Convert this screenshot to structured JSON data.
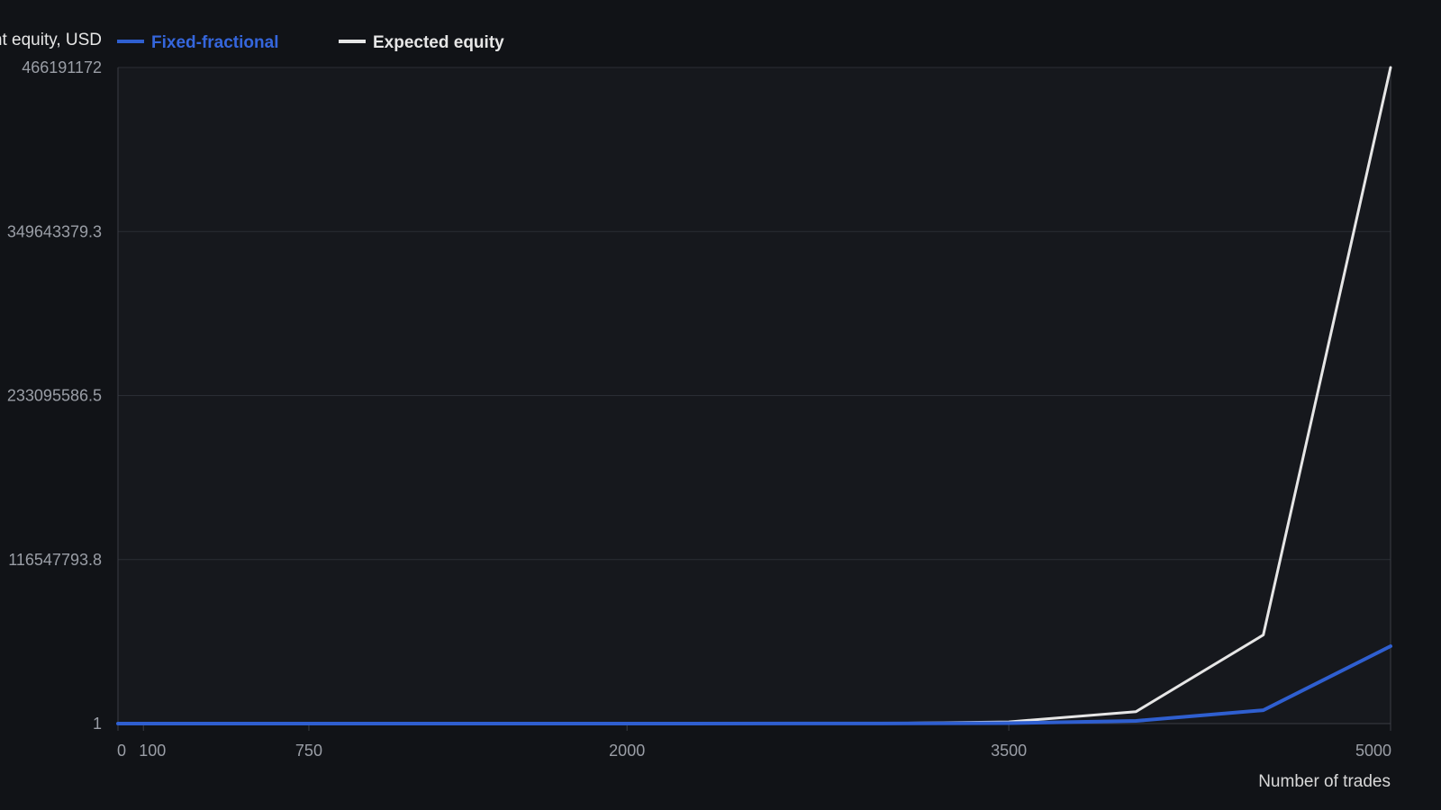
{
  "chart_data": {
    "type": "line",
    "ylabel": "nt equity, USD",
    "xlabel": "Number of trades",
    "x": [
      0,
      100,
      750,
      2000,
      3000,
      3500,
      4000,
      4500,
      5000
    ],
    "xticks": [
      0,
      100,
      750,
      2000,
      3500,
      5000
    ],
    "xtick_labels": [
      "0",
      "100",
      "750",
      "2000",
      "3500",
      "5000"
    ],
    "xlim": [
      0,
      5000
    ],
    "yticks": [
      1,
      116547793.8,
      233095586.5,
      349643379.3,
      466191172
    ],
    "ytick_labels": [
      "1",
      "116547793.8",
      "233095586.5",
      "349643379.3",
      "466191172"
    ],
    "ylim": [
      1,
      466191172
    ],
    "grid": true,
    "legend_position": "top-left",
    "series": [
      {
        "name": "Expected equity",
        "color": "#e6e6e6",
        "values": [
          1,
          1,
          1,
          1,
          80000,
          1200000,
          8500000,
          63000000,
          466191172
        ]
      },
      {
        "name": "Fixed-fractional",
        "color": "#2f5fd0",
        "values": [
          1,
          1,
          1,
          1,
          40000,
          350000,
          1900000,
          9500000,
          55000000
        ]
      }
    ],
    "legend": [
      {
        "name": "Fixed-fractional",
        "color": "#2f5fd0",
        "label_color": "#3566dc"
      },
      {
        "name": "Expected equity",
        "color": "#e6e6e6",
        "label_color": "#e6e6e6"
      }
    ]
  }
}
